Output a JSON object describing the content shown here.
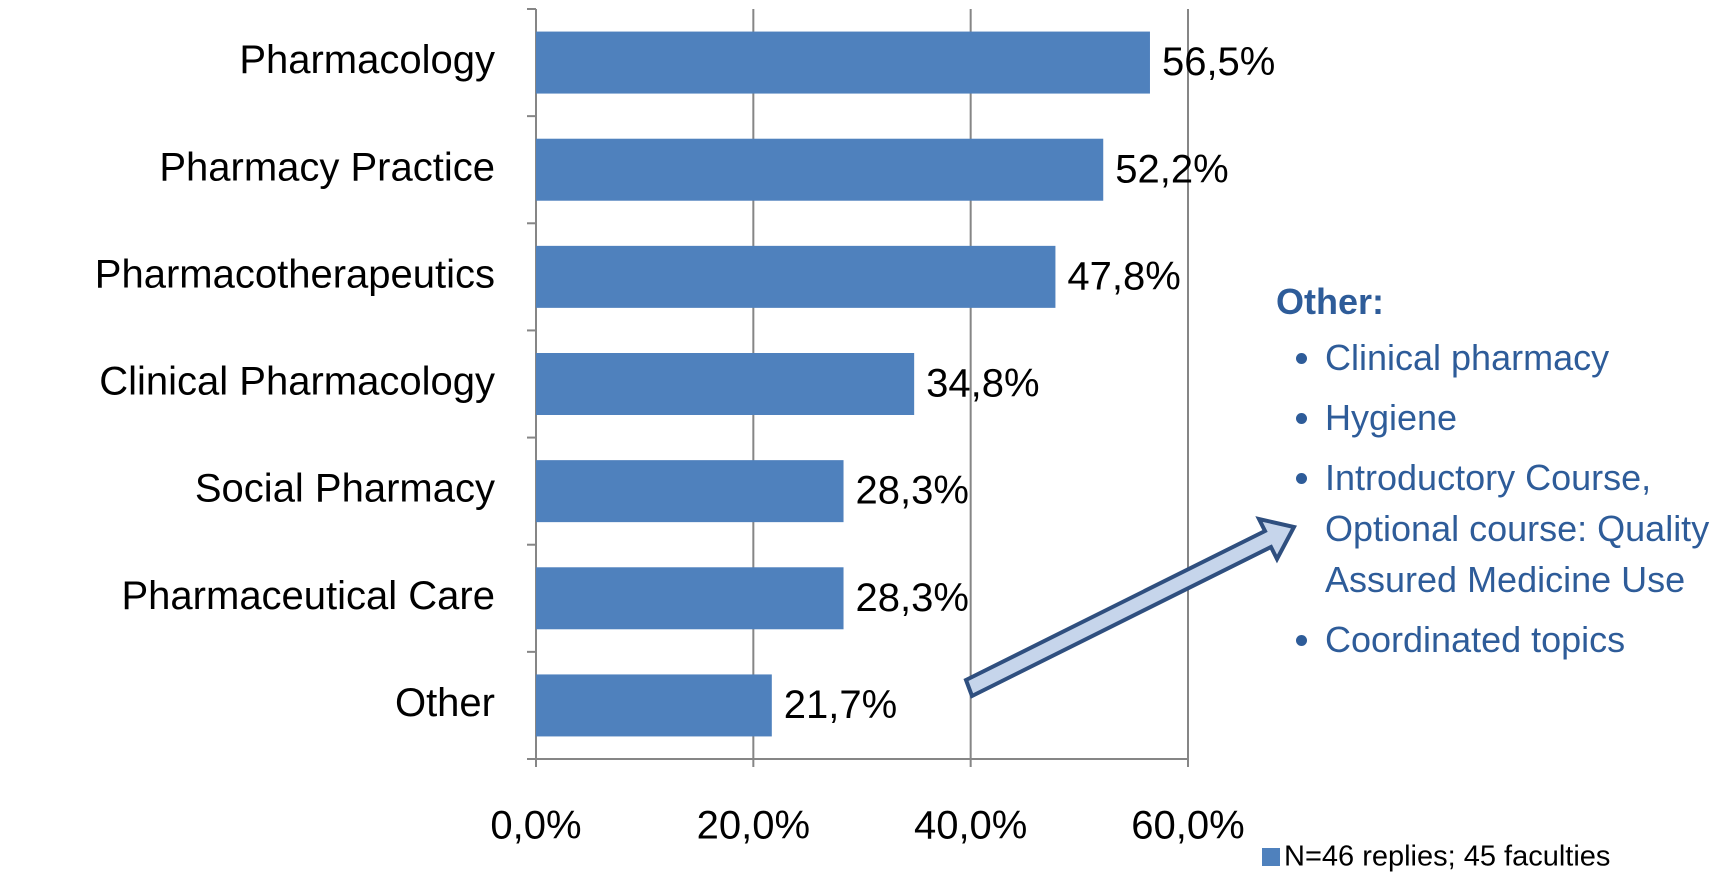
{
  "chart_data": {
    "type": "barh",
    "categories": [
      "Pharmacology",
      "Pharmacy Practice",
      "Pharmacotherapeutics",
      "Clinical Pharmacology",
      "Social Pharmacy",
      "Pharmaceutical Care",
      "Other"
    ],
    "series": [
      {
        "name": "N=46 replies; 45 faculties",
        "color": "#4f81bd",
        "values": [
          56.5,
          52.2,
          47.8,
          34.8,
          28.3,
          28.3,
          21.7
        ],
        "value_labels": [
          "56,5%",
          "52,2%",
          "47,8%",
          "34,8%",
          "28,3%",
          "28,3%",
          "21,7%"
        ]
      }
    ],
    "xlim": [
      0,
      60
    ],
    "xticks": [
      {
        "value": 0,
        "label": "0,0%"
      },
      {
        "value": 20,
        "label": "20,0%"
      },
      {
        "value": 40,
        "label": "40,0%"
      },
      {
        "value": 60,
        "label": "60,0%"
      }
    ],
    "grid": true,
    "legend": "bottom-right",
    "annotation": {
      "title": "Other:",
      "items": [
        "Clinical pharmacy",
        "Hygiene",
        "Introductory Course, Optional course: Quality Assured Medicine Use",
        "Coordinated topics"
      ]
    }
  }
}
